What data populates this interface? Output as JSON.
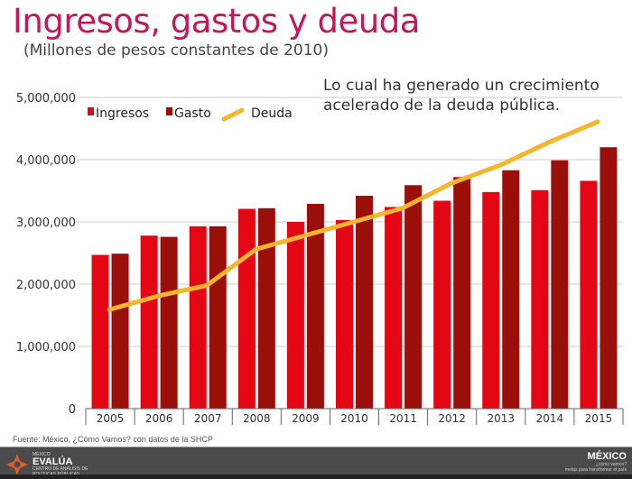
{
  "header": {
    "title": "Ingresos, gastos y deuda",
    "subtitle": "(Millones de pesos constantes de 2010)"
  },
  "annotation": "Lo cual ha generado un crecimiento acelerado de la deuda pública.",
  "source": "Fuente: México, ¿Cómo Vamos? con datos de la SHCP",
  "footer": {
    "left_logo": {
      "top": "MÉXICO",
      "name": "EVALÚA",
      "tagline": "CENTRO DE ANÁLISIS DE POLÍTICAS PÚBLICAS"
    },
    "right_logo": {
      "name": "MÉXICO",
      "sub": "¿cómo vamos?",
      "tagline": "metas para transformar el país"
    }
  },
  "colors": {
    "ingresos": "#e30613",
    "gasto": "#9b0f0a",
    "deuda": "#f7b52c",
    "title": "#c2185b",
    "grid": "#dddddd"
  },
  "chart_data": {
    "type": "bar",
    "title": "Ingresos, gastos y deuda",
    "subtitle": "(Millones de pesos constantes de 2010)",
    "xlabel": "",
    "ylabel": "",
    "ylim": [
      0,
      5000000
    ],
    "yticks": [
      0,
      1000000,
      2000000,
      3000000,
      4000000,
      5000000
    ],
    "ytick_labels": [
      "0",
      "1,000,000",
      "2,000,000",
      "3,000,000",
      "4,000,000",
      "5,000,000"
    ],
    "grid": true,
    "legend_position": "top-left",
    "categories": [
      "2005",
      "2006",
      "2007",
      "2008",
      "2009",
      "2010",
      "2011",
      "2012",
      "2013",
      "2014",
      "2015"
    ],
    "series": [
      {
        "name": "Ingresos",
        "type": "bar",
        "values": [
          2470000,
          2780000,
          2930000,
          3210000,
          3000000,
          3030000,
          3240000,
          3340000,
          3480000,
          3510000,
          3660000
        ]
      },
      {
        "name": "Gasto",
        "type": "bar",
        "values": [
          2490000,
          2760000,
          2930000,
          3220000,
          3290000,
          3420000,
          3590000,
          3720000,
          3830000,
          3990000,
          4200000
        ]
      },
      {
        "name": "Deuda",
        "type": "line",
        "values": [
          1590000,
          1810000,
          1980000,
          2560000,
          2780000,
          3000000,
          3220000,
          3620000,
          3910000,
          4280000,
          4610000
        ]
      }
    ]
  }
}
